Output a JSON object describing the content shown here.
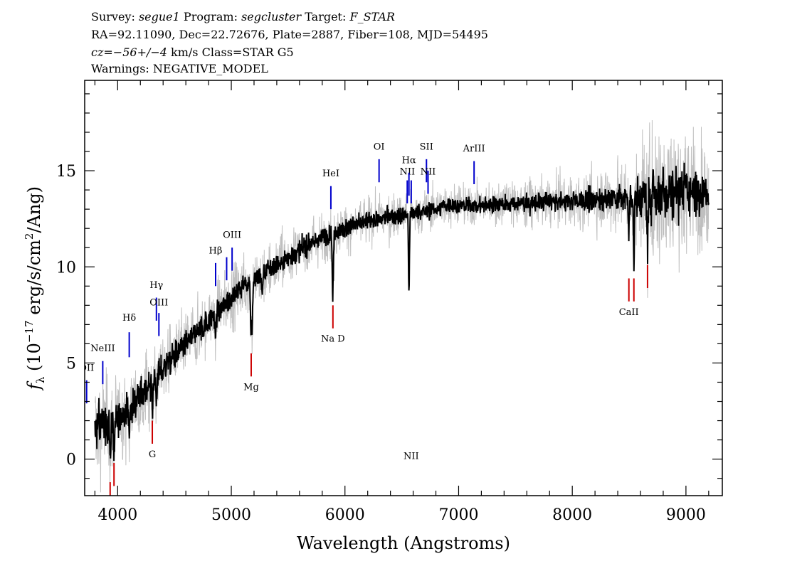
{
  "header": {
    "line1": {
      "survey_label": "Survey:",
      "survey": "segue1",
      "program_label": "Program:",
      "program": "segcluster",
      "target_label": "Target:",
      "target": "F_STAR"
    },
    "line2": "RA=92.11090, Dec=22.72676, Plate=2887, Fiber=108, MJD=54495",
    "line3": {
      "cz_label": "cz=",
      "cz_value": "−56+/−4",
      "rest": " km/s Class=STAR G5"
    },
    "line4": "Warnings: NEGATIVE_MODEL"
  },
  "chart_data": {
    "type": "line",
    "title": "",
    "xlabel": "Wavelength (Angstroms)",
    "ylabel": "f_λ (10^-17 erg/s/cm^2/Ang)",
    "ylabel_parts": {
      "f": "f",
      "sub": "λ",
      "pre": " (10",
      "exp1": "−17",
      "mid": " erg/s/cm",
      "exp2": "2",
      "post": "/Ang)"
    },
    "xlim": [
      3710,
      9320
    ],
    "ylim": [
      -1.9,
      19.7
    ],
    "xticks": [
      4000,
      5000,
      6000,
      7000,
      8000,
      9000
    ],
    "xtick_labels": [
      "4000",
      "5000",
      "6000",
      "7000",
      "8000",
      "9000"
    ],
    "yticks": [
      0,
      5,
      10,
      15
    ],
    "ytick_labels": [
      "0",
      "5",
      "10",
      "15"
    ],
    "grid": false,
    "series": [
      {
        "color": "#000000",
        "continuum": [
          [
            3800,
            1.5
          ],
          [
            3850,
            1.8
          ],
          [
            3900,
            1.9
          ],
          [
            3950,
            1.9
          ],
          [
            4000,
            2.1
          ],
          [
            4100,
            2.6
          ],
          [
            4200,
            3.3
          ],
          [
            4300,
            4.0
          ],
          [
            4400,
            4.7
          ],
          [
            4500,
            5.4
          ],
          [
            4600,
            6.0
          ],
          [
            4700,
            6.6
          ],
          [
            4800,
            7.2
          ],
          [
            4900,
            7.8
          ],
          [
            5000,
            8.4
          ],
          [
            5100,
            9.0
          ],
          [
            5200,
            9.3
          ],
          [
            5300,
            9.7
          ],
          [
            5400,
            10.1
          ],
          [
            5500,
            10.5
          ],
          [
            5600,
            10.9
          ],
          [
            5700,
            11.2
          ],
          [
            5800,
            11.5
          ],
          [
            5900,
            11.8
          ],
          [
            6000,
            12.0
          ],
          [
            6100,
            12.2
          ],
          [
            6200,
            12.4
          ],
          [
            6300,
            12.5
          ],
          [
            6400,
            12.6
          ],
          [
            6500,
            12.7
          ],
          [
            6600,
            12.8
          ],
          [
            6700,
            12.9
          ],
          [
            6800,
            13.0
          ],
          [
            6900,
            13.2
          ],
          [
            7000,
            13.2
          ],
          [
            7200,
            13.2
          ],
          [
            7400,
            13.3
          ],
          [
            7600,
            13.3
          ],
          [
            7800,
            13.4
          ],
          [
            8000,
            13.4
          ],
          [
            8200,
            13.5
          ],
          [
            8400,
            13.6
          ],
          [
            8600,
            13.6
          ],
          [
            8800,
            13.9
          ],
          [
            9000,
            14.0
          ],
          [
            9200,
            13.8
          ]
        ],
        "absorption": [
          [
            3934,
            2.3
          ],
          [
            3968,
            2.0
          ],
          [
            4102,
            1.5
          ],
          [
            4227,
            0.8
          ],
          [
            4305,
            1.8
          ],
          [
            4340,
            1.3
          ],
          [
            4861,
            1.5
          ],
          [
            5172,
            2.2
          ],
          [
            5183,
            2.8
          ],
          [
            5270,
            1.1
          ],
          [
            5890,
            2.2
          ],
          [
            5896,
            2.0
          ],
          [
            6563,
            4.0
          ],
          [
            8498,
            2.0
          ],
          [
            8542,
            3.2
          ],
          [
            8662,
            2.6
          ]
        ],
        "noise_gray": [
          [
            3800,
            1.8
          ],
          [
            4000,
            1.4
          ],
          [
            4500,
            1.1
          ],
          [
            5000,
            1.0
          ],
          [
            6000,
            0.8
          ],
          [
            7000,
            0.7
          ],
          [
            8000,
            0.8
          ],
          [
            8500,
            1.3
          ],
          [
            8800,
            2.6
          ],
          [
            9000,
            2.2
          ],
          [
            9200,
            1.6
          ]
        ],
        "noise_black": [
          [
            3800,
            1.0
          ],
          [
            4000,
            0.6
          ],
          [
            5000,
            0.45
          ],
          [
            6000,
            0.35
          ],
          [
            7000,
            0.3
          ],
          [
            8000,
            0.35
          ],
          [
            8500,
            0.6
          ],
          [
            8800,
            1.1
          ],
          [
            9200,
            0.7
          ]
        ]
      }
    ],
    "error_band": {
      "color": "#bfbfbf"
    },
    "line_labels": [
      {
        "label": "OII",
        "wave": 3727,
        "color": "#0000cc",
        "y1": 4.1,
        "y2": 2.9,
        "ty": 4.6
      },
      {
        "label": "NeIII",
        "wave": 3869,
        "color": "#0000cc",
        "y1": 5.1,
        "y2": 3.9,
        "ty": 5.6
      },
      {
        "label": "Hδ",
        "wave": 4102,
        "color": "#0000cc",
        "y1": 6.6,
        "y2": 5.3,
        "ty": 7.2
      },
      {
        "label": "Hγ",
        "wave": 4341,
        "color": "#0000cc",
        "y1": 8.4,
        "y2": 7.2,
        "ty": 8.9
      },
      {
        "label": "OIII",
        "wave": 4363,
        "color": "#0000cc",
        "y1": 7.6,
        "y2": 6.4,
        "ty": 8.0
      },
      {
        "label": "Hβ",
        "wave": 4862,
        "color": "#0000cc",
        "y1": 10.2,
        "y2": 9.0,
        "ty": 10.7
      },
      {
        "label": "",
        "wave": 4959,
        "color": "#0000cc",
        "y1": 10.5,
        "y2": 9.3,
        "ty": 0
      },
      {
        "label": "OIII",
        "wave": 5007,
        "color": "#0000cc",
        "y1": 11.0,
        "y2": 9.8,
        "ty": 11.5
      },
      {
        "label": "HeI",
        "wave": 5876,
        "color": "#0000cc",
        "y1": 14.2,
        "y2": 13.0,
        "ty": 14.7
      },
      {
        "label": "OI",
        "wave": 6300,
        "color": "#0000cc",
        "y1": 15.6,
        "y2": 14.4,
        "ty": 16.1
      },
      {
        "label": "NII",
        "wave": 6548,
        "color": "#0000cc",
        "y1": 14.5,
        "y2": 13.3,
        "ty": 14.8
      },
      {
        "label": "Hα",
        "wave": 6563,
        "color": "#0000cc",
        "y1": 14.9,
        "y2": 13.7,
        "ty": 15.4
      },
      {
        "label": "NII",
        "wave": 6583,
        "color": "#0000cc",
        "y1": 14.5,
        "y2": 13.3,
        "ty": 0
      },
      {
        "label": "SII",
        "wave": 6717,
        "color": "#0000cc",
        "y1": 15.6,
        "y2": 14.4,
        "ty": 16.1
      },
      {
        "label": "NII",
        "wave": 6731,
        "color": "#0000cc",
        "y1": 15.0,
        "y2": 13.8,
        "ty": 14.8
      },
      {
        "label": "ArIII",
        "wave": 7136,
        "color": "#0000cc",
        "y1": 15.5,
        "y2": 14.3,
        "ty": 16.0
      },
      {
        "label": "",
        "wave": 3934,
        "color": "#cc0000",
        "y1": -1.2,
        "y2": -2.4,
        "ty": 0
      },
      {
        "label": "",
        "wave": 3968,
        "color": "#cc0000",
        "y1": -0.2,
        "y2": -1.4,
        "ty": 0
      },
      {
        "label": "G",
        "wave": 4305,
        "color": "#cc0000",
        "y1": 2.0,
        "y2": 0.8,
        "ty": 0.1
      },
      {
        "label": "Mg",
        "wave": 5175,
        "color": "#cc0000",
        "y1": 5.5,
        "y2": 4.3,
        "ty": 3.6
      },
      {
        "label": "Na D",
        "wave": 5894,
        "color": "#cc0000",
        "y1": 8.0,
        "y2": 6.8,
        "ty": 6.1
      },
      {
        "label": "CaII",
        "wave": 8498,
        "color": "#cc0000",
        "y1": 9.4,
        "y2": 8.2,
        "ty": 7.5
      },
      {
        "label": "",
        "wave": 8542,
        "color": "#cc0000",
        "y1": 9.4,
        "y2": 8.2,
        "ty": 0
      },
      {
        "label": "",
        "wave": 8662,
        "color": "#cc0000",
        "y1": 10.1,
        "y2": 8.9,
        "ty": 0
      }
    ]
  }
}
